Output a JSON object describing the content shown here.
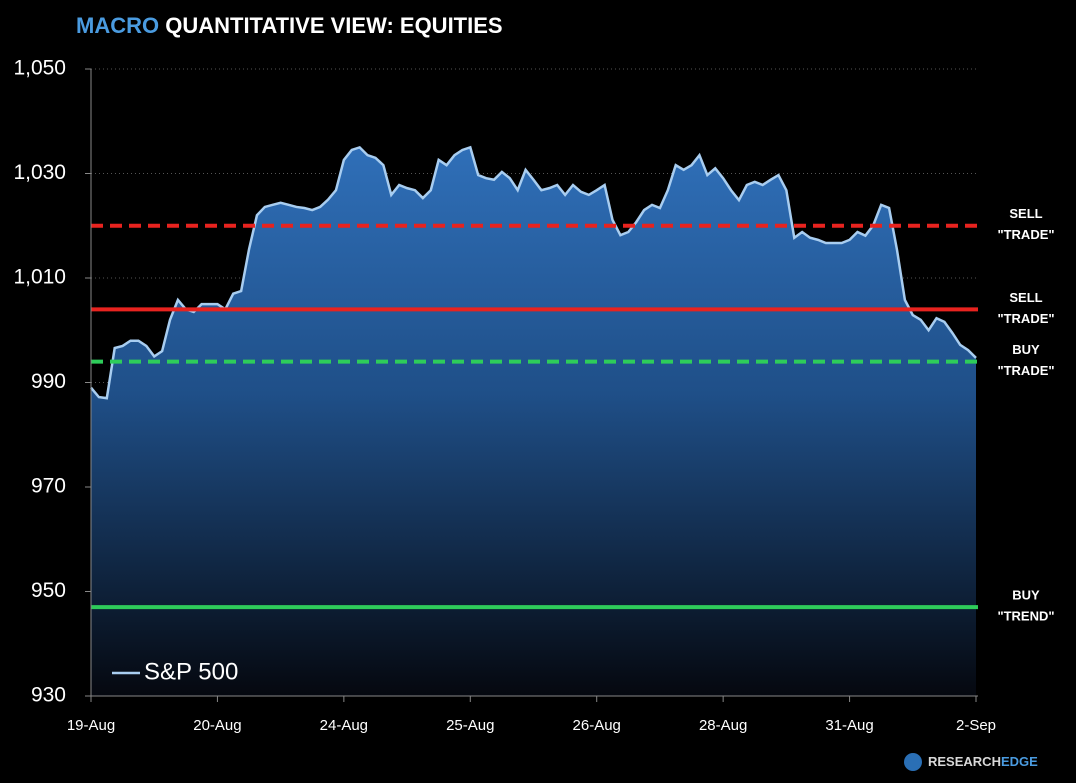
{
  "chart_data": {
    "type": "area",
    "title": {
      "highlight": "MACRO",
      "rest": "QUANTITATIVE VIEW: EQUITIES"
    },
    "brand": {
      "part1": "RESEARCH",
      "part2": "EDGE"
    },
    "categories": [
      "19-Aug",
      null,
      null,
      null,
      null,
      null,
      null,
      null,
      null,
      null,
      null,
      null,
      null,
      null,
      null,
      null,
      "20-Aug",
      null,
      null,
      null,
      null,
      null,
      null,
      null,
      null,
      null,
      null,
      null,
      null,
      null,
      null,
      null,
      "24-Aug",
      null,
      null,
      null,
      null,
      null,
      null,
      null,
      null,
      null,
      null,
      null,
      null,
      null,
      null,
      null,
      "25-Aug",
      null,
      null,
      null,
      null,
      null,
      null,
      null,
      null,
      null,
      null,
      null,
      null,
      null,
      null,
      null,
      "26-Aug",
      null,
      null,
      null,
      null,
      null,
      null,
      null,
      null,
      null,
      null,
      null,
      null,
      null,
      null,
      null,
      "28-Aug",
      null,
      null,
      null,
      null,
      null,
      null,
      null,
      null,
      null,
      null,
      null,
      null,
      null,
      null,
      null,
      "31-Aug",
      null,
      null,
      null,
      null,
      null,
      null,
      null,
      null,
      null,
      null,
      null,
      null,
      null,
      null,
      null,
      "2-Sep"
    ],
    "series": [
      {
        "name": "S&P 500",
        "color": "#a8cdf0",
        "fill": "#2f6fb8",
        "values": [
          989,
          987.2,
          987,
          996.6,
          997,
          998,
          998,
          997,
          995,
          996,
          1002,
          1005.8,
          1004,
          1003.5,
          1005,
          1005,
          1005,
          1004,
          1007,
          1007.5,
          1015.5,
          1022,
          1023.6,
          1024,
          1024.4,
          1024,
          1023.6,
          1023.4,
          1023,
          1023.6,
          1025,
          1026.8,
          1032.6,
          1034.5,
          1035,
          1033.5,
          1033,
          1031.6,
          1025.9,
          1027.8,
          1027.2,
          1026.8,
          1025.3,
          1026.8,
          1032.6,
          1031.6,
          1033.5,
          1034.5,
          1035,
          1029.7,
          1029.1,
          1028.8,
          1030.3,
          1029.1,
          1026.8,
          1030.7,
          1028.8,
          1026.8,
          1027.2,
          1027.8,
          1025.9,
          1027.8,
          1026.5,
          1025.9,
          1026.8,
          1027.8,
          1021.1,
          1018.2,
          1018.8,
          1020.7,
          1023,
          1024,
          1023.4,
          1026.8,
          1031.6,
          1030.7,
          1031.6,
          1033.5,
          1029.7,
          1031,
          1029.1,
          1026.8,
          1024.9,
          1027.8,
          1028.4,
          1027.8,
          1028.8,
          1029.7,
          1026.8,
          1017.7,
          1018.8,
          1017.7,
          1017.3,
          1016.7,
          1016.7,
          1016.7,
          1017.3,
          1018.8,
          1018.1,
          1020.1,
          1024,
          1023.4,
          1015.4,
          1005.8,
          1002.9,
          1002,
          1000,
          1002.3,
          1001.6,
          999.5,
          997.2,
          996.2,
          994.7
        ]
      }
    ],
    "ylim": [
      930,
      1050
    ],
    "yticks": [
      930,
      950,
      970,
      990,
      {
        "value": 1010,
        "label": "1,010"
      },
      {
        "value": 1030,
        "label": "1,030"
      },
      {
        "value": 1050,
        "label": "1,050"
      }
    ],
    "grid": true,
    "legend": "bottom-left",
    "reference_lines": [
      {
        "value": 1020,
        "color": "#e8231f",
        "dashed": true,
        "label": [
          "SELL",
          "\"TRADE\""
        ]
      },
      {
        "value": 1004,
        "color": "#e8231f",
        "dashed": false,
        "label": [
          "SELL",
          "\"TRADE\""
        ]
      },
      {
        "value": 994,
        "color": "#2ecc5a",
        "dashed": true,
        "label": [
          "BUY",
          "\"TRADE\""
        ]
      },
      {
        "value": 947,
        "color": "#2ecc5a",
        "dashed": false,
        "label": [
          "BUY",
          "\"TREND\""
        ]
      }
    ]
  }
}
